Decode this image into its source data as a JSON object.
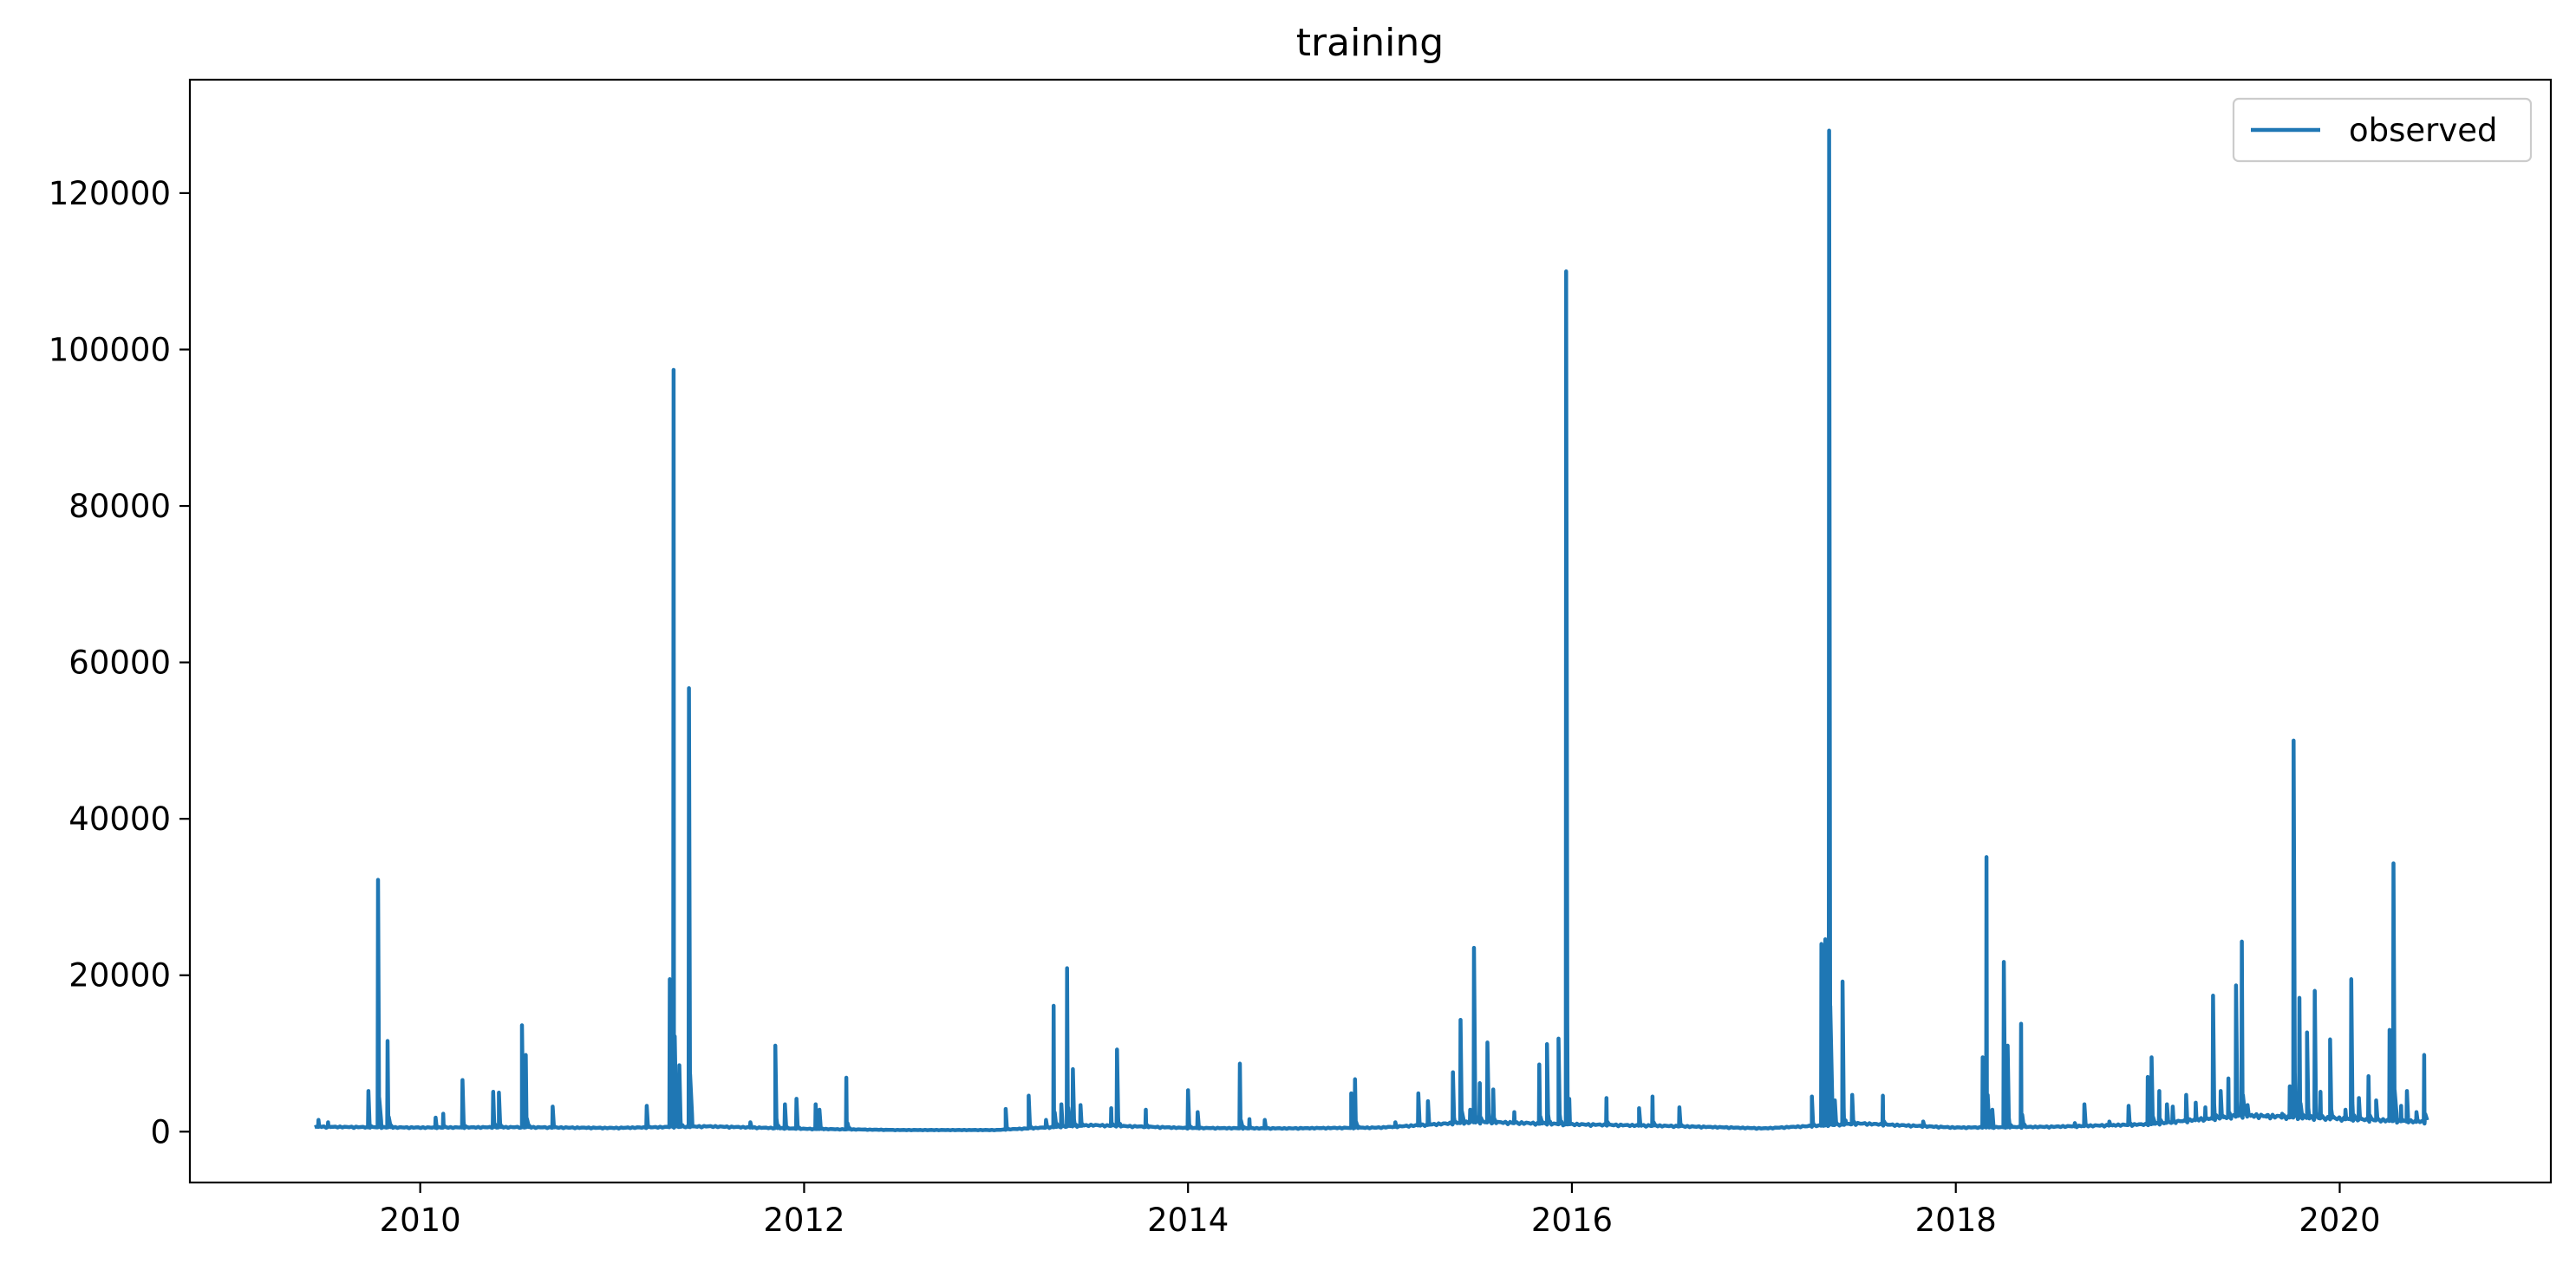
{
  "chart_data": {
    "type": "line",
    "title": "training",
    "xlabel": "",
    "ylabel": "",
    "xlim": [
      2008.8,
      2021.1
    ],
    "ylim": [
      -6500,
      134500
    ],
    "x_ticks": [
      2010,
      2012,
      2014,
      2016,
      2018,
      2020
    ],
    "x_tick_labels": [
      "2010",
      "2012",
      "2014",
      "2016",
      "2018",
      "2020"
    ],
    "y_ticks": [
      0,
      20000,
      40000,
      60000,
      80000,
      100000,
      120000
    ],
    "y_tick_labels": [
      "0",
      "20000",
      "40000",
      "60000",
      "80000",
      "100000",
      "120000"
    ],
    "grid": false,
    "legend": {
      "position": "upper right"
    },
    "colors": {
      "observed": "#1f77b4"
    },
    "series": [
      {
        "name": "observed",
        "baseline": [
          [
            2009.45,
            600
          ],
          [
            2010.0,
            500
          ],
          [
            2010.5,
            550
          ],
          [
            2011.0,
            450
          ],
          [
            2011.5,
            650
          ],
          [
            2012.0,
            350
          ],
          [
            2012.5,
            200
          ],
          [
            2013.0,
            200
          ],
          [
            2013.5,
            800
          ],
          [
            2014.0,
            450
          ],
          [
            2014.5,
            400
          ],
          [
            2015.0,
            500
          ],
          [
            2015.5,
            1200
          ],
          [
            2016.0,
            900
          ],
          [
            2016.5,
            700
          ],
          [
            2017.0,
            400
          ],
          [
            2017.5,
            1000
          ],
          [
            2018.0,
            500
          ],
          [
            2018.5,
            600
          ],
          [
            2019.0,
            900
          ],
          [
            2019.5,
            2000
          ],
          [
            2020.0,
            1600
          ],
          [
            2020.45,
            1200
          ]
        ],
        "spikes": [
          [
            2009.47,
            1500
          ],
          [
            2009.52,
            1200
          ],
          [
            2009.73,
            5200
          ],
          [
            2009.78,
            32200
          ],
          [
            2009.83,
            11600
          ],
          [
            2010.08,
            1800
          ],
          [
            2010.12,
            2300
          ],
          [
            2010.22,
            6600
          ],
          [
            2010.38,
            5100
          ],
          [
            2010.41,
            5000
          ],
          [
            2010.53,
            13600
          ],
          [
            2010.55,
            9800
          ],
          [
            2010.69,
            3200
          ],
          [
            2011.18,
            3300
          ],
          [
            2011.3,
            19500
          ],
          [
            2011.32,
            97400
          ],
          [
            2011.35,
            8500
          ],
          [
            2011.4,
            56700
          ],
          [
            2011.72,
            1200
          ],
          [
            2011.85,
            11000
          ],
          [
            2011.9,
            3500
          ],
          [
            2011.96,
            4200
          ],
          [
            2012.06,
            3500
          ],
          [
            2012.08,
            2800
          ],
          [
            2012.22,
            6900
          ],
          [
            2013.05,
            2900
          ],
          [
            2013.17,
            4600
          ],
          [
            2013.26,
            1500
          ],
          [
            2013.3,
            16100
          ],
          [
            2013.34,
            3500
          ],
          [
            2013.37,
            20900
          ],
          [
            2013.4,
            8000
          ],
          [
            2013.44,
            3400
          ],
          [
            2013.6,
            3000
          ],
          [
            2013.63,
            10500
          ],
          [
            2013.78,
            2800
          ],
          [
            2014.0,
            5300
          ],
          [
            2014.05,
            2500
          ],
          [
            2014.27,
            8700
          ],
          [
            2014.32,
            1600
          ],
          [
            2014.4,
            1500
          ],
          [
            2014.85,
            4900
          ],
          [
            2014.87,
            6700
          ],
          [
            2015.08,
            1200
          ],
          [
            2015.2,
            4900
          ],
          [
            2015.25,
            3900
          ],
          [
            2015.38,
            7600
          ],
          [
            2015.42,
            14300
          ],
          [
            2015.47,
            2800
          ],
          [
            2015.49,
            23500
          ],
          [
            2015.52,
            6200
          ],
          [
            2015.56,
            11400
          ],
          [
            2015.59,
            5400
          ],
          [
            2015.7,
            2500
          ],
          [
            2015.83,
            8600
          ],
          [
            2015.87,
            11200
          ],
          [
            2015.93,
            11900
          ],
          [
            2015.97,
            110000
          ],
          [
            2016.18,
            4300
          ],
          [
            2016.35,
            3000
          ],
          [
            2016.42,
            4500
          ],
          [
            2016.56,
            3100
          ],
          [
            2017.25,
            4500
          ],
          [
            2017.3,
            24000
          ],
          [
            2017.32,
            24600
          ],
          [
            2017.34,
            128000
          ],
          [
            2017.37,
            4000
          ],
          [
            2017.41,
            19200
          ],
          [
            2017.46,
            4700
          ],
          [
            2017.62,
            4600
          ],
          [
            2017.83,
            1300
          ],
          [
            2018.14,
            9500
          ],
          [
            2018.16,
            35100
          ],
          [
            2018.19,
            2800
          ],
          [
            2018.25,
            21700
          ],
          [
            2018.27,
            11000
          ],
          [
            2018.34,
            13800
          ],
          [
            2018.62,
            1100
          ],
          [
            2018.67,
            3500
          ],
          [
            2018.8,
            1300
          ],
          [
            2018.9,
            3300
          ],
          [
            2019.0,
            7000
          ],
          [
            2019.02,
            9500
          ],
          [
            2019.06,
            5200
          ],
          [
            2019.1,
            3500
          ],
          [
            2019.13,
            3200
          ],
          [
            2019.2,
            4700
          ],
          [
            2019.25,
            3700
          ],
          [
            2019.3,
            3100
          ],
          [
            2019.34,
            17400
          ],
          [
            2019.38,
            5200
          ],
          [
            2019.42,
            6800
          ],
          [
            2019.46,
            18700
          ],
          [
            2019.49,
            24300
          ],
          [
            2019.52,
            3400
          ],
          [
            2019.62,
            2100
          ],
          [
            2019.7,
            2300
          ],
          [
            2019.74,
            5800
          ],
          [
            2019.76,
            50000
          ],
          [
            2019.79,
            17100
          ],
          [
            2019.83,
            12700
          ],
          [
            2019.87,
            18000
          ],
          [
            2019.9,
            5100
          ],
          [
            2019.95,
            11800
          ],
          [
            2020.03,
            2800
          ],
          [
            2020.06,
            19500
          ],
          [
            2020.1,
            4300
          ],
          [
            2020.15,
            7100
          ],
          [
            2020.19,
            4000
          ],
          [
            2020.26,
            13000
          ],
          [
            2020.28,
            34300
          ],
          [
            2020.32,
            3300
          ],
          [
            2020.35,
            5200
          ],
          [
            2020.4,
            2500
          ],
          [
            2020.44,
            9800
          ],
          [
            2020.46,
            11100
          ],
          [
            2020.48,
            9600
          ],
          [
            2020.5,
            3300
          ]
        ]
      }
    ]
  }
}
